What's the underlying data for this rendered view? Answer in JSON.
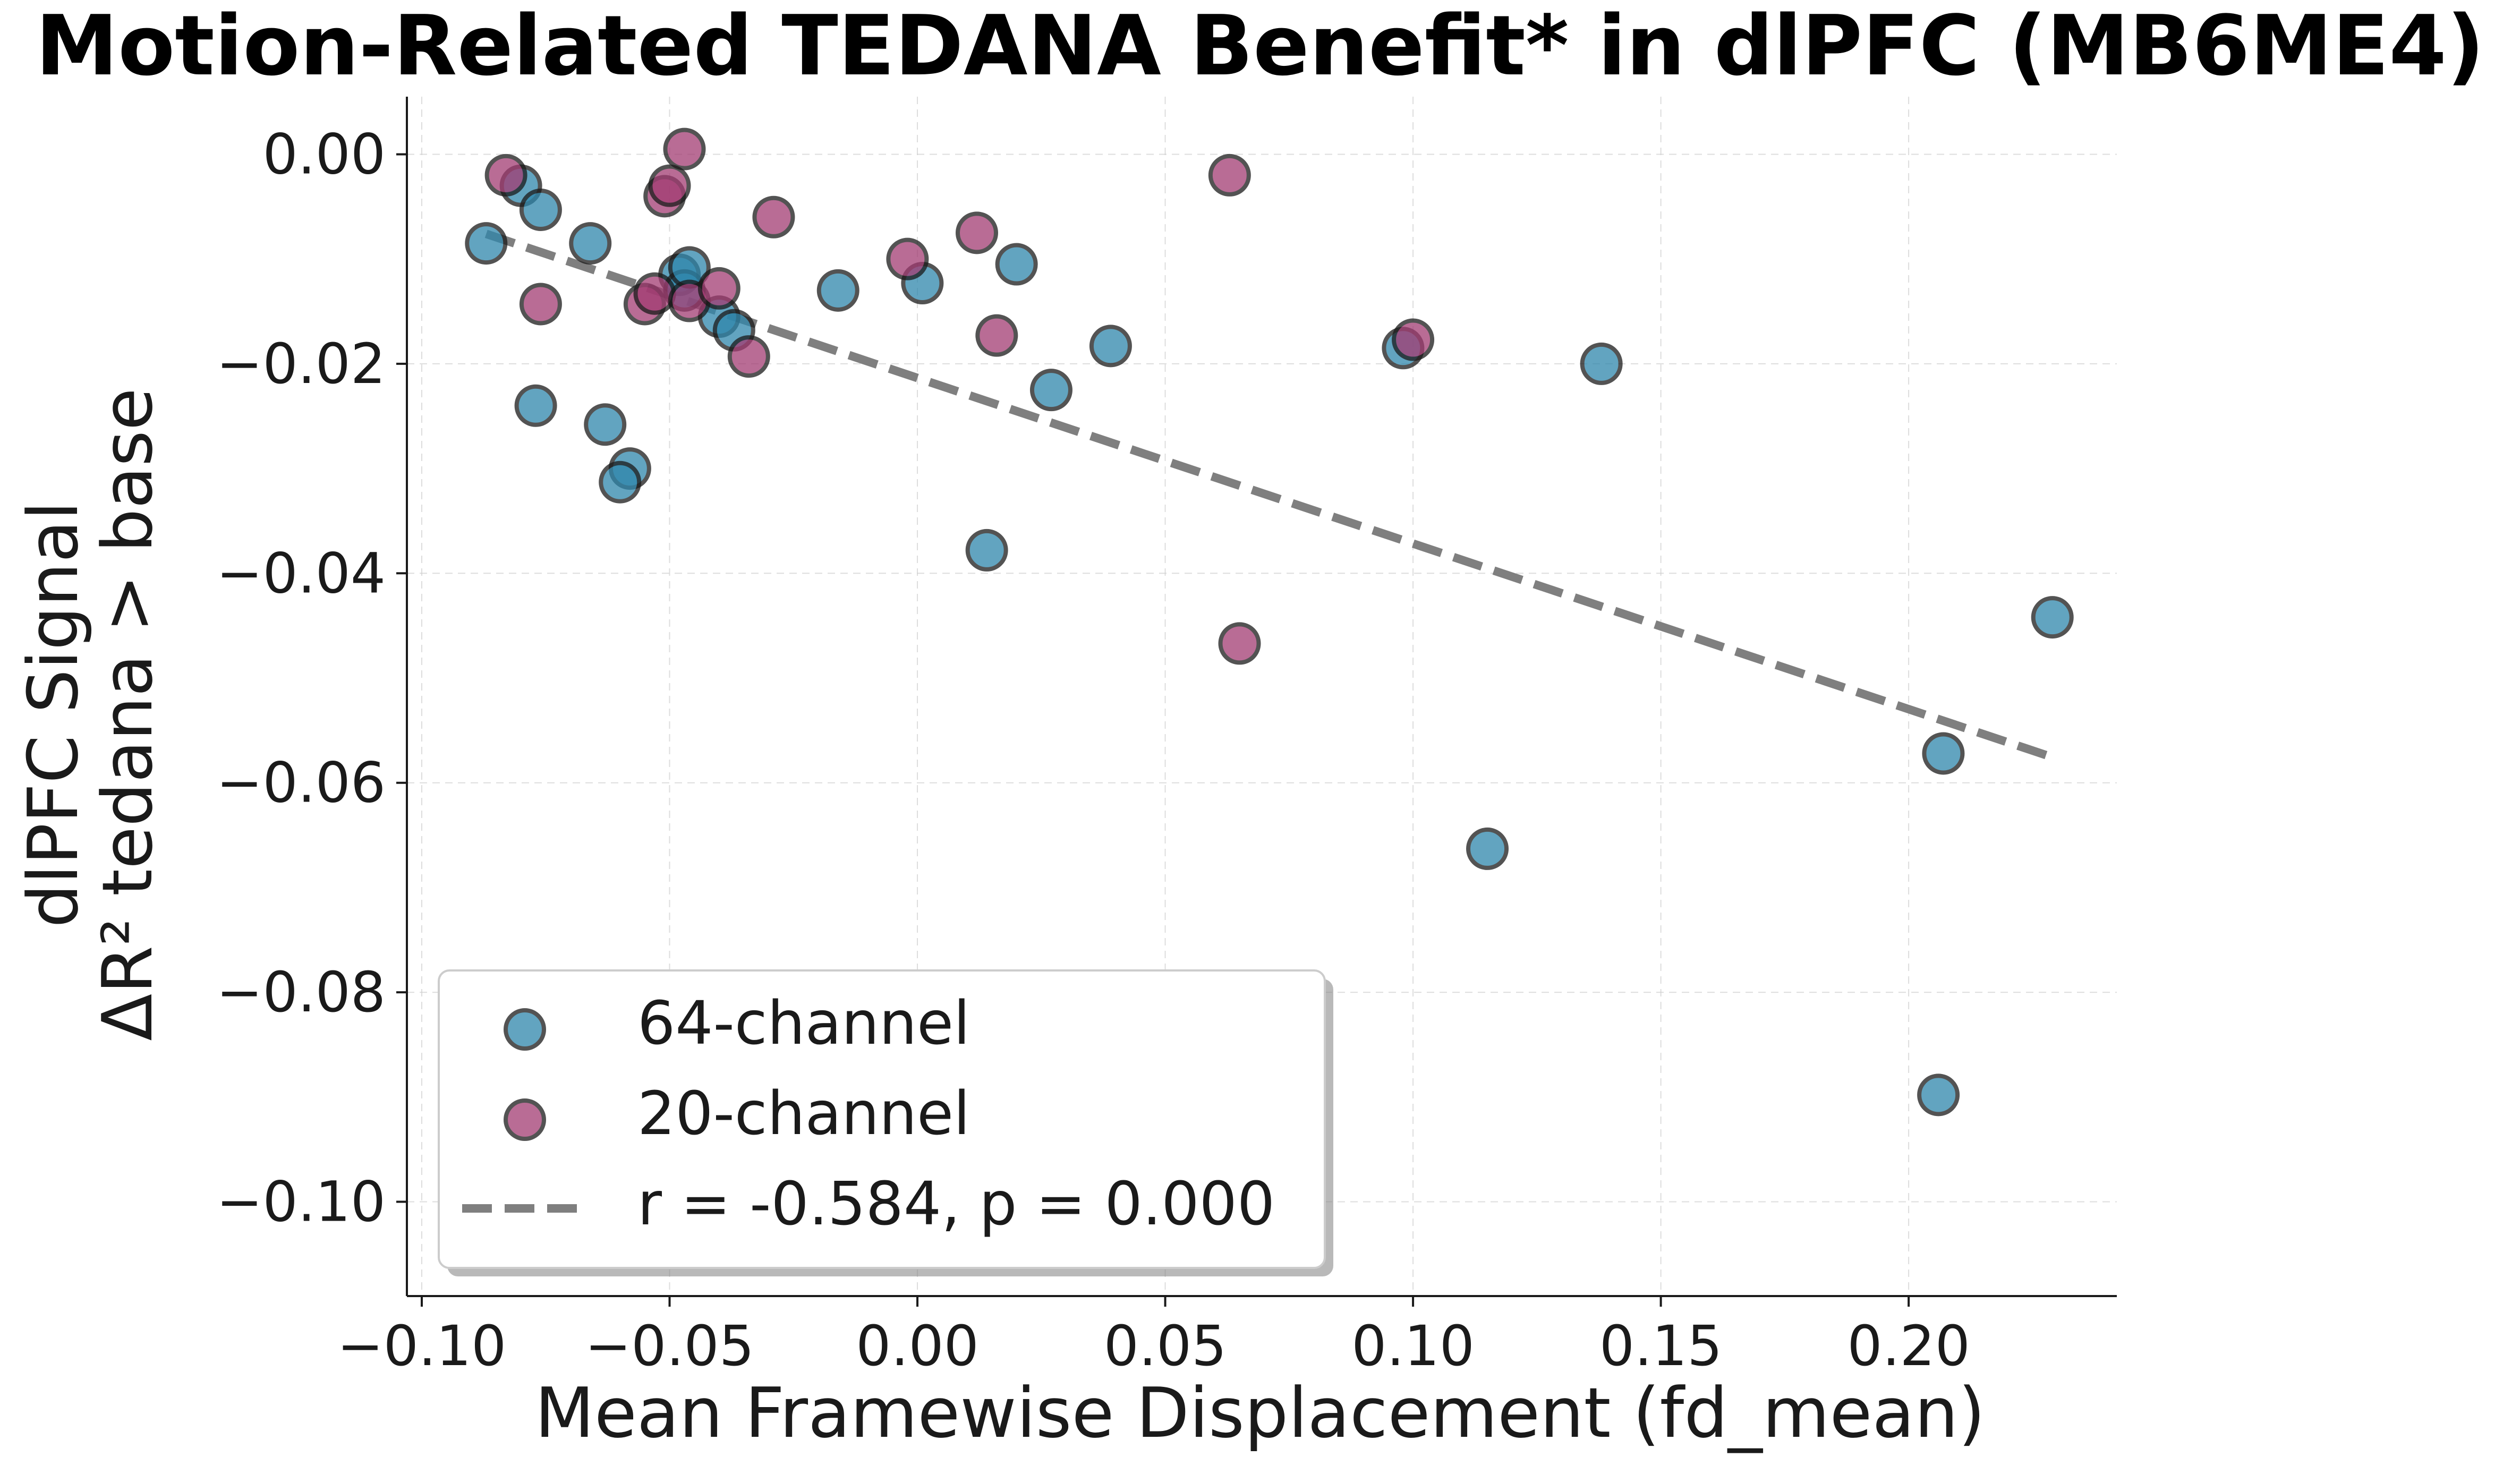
{
  "chart_data": {
    "type": "scatter",
    "title": "Motion-Related TEDANA Benefit* in dlPFC (MB6ME4)",
    "xlabel": "Mean Framewise Displacement (fd_mean)",
    "ylabel_line1": "dlPFC Signal",
    "ylabel_line2": "ΔR² tedana > base",
    "xlim": [
      -0.103,
      0.242
    ],
    "ylim": [
      -0.109,
      0.0055
    ],
    "x_ticks": [
      -0.1,
      -0.05,
      0.0,
      0.05,
      0.1,
      0.15,
      0.2
    ],
    "x_tick_labels": [
      "−0.10",
      "−0.05",
      "0.00",
      "0.05",
      "0.10",
      "0.15",
      "0.20"
    ],
    "y_ticks": [
      0.0,
      -0.02,
      -0.04,
      -0.06,
      -0.08,
      -0.1
    ],
    "y_tick_labels": [
      "0.00",
      "−0.02",
      "−0.04",
      "−0.06",
      "−0.08",
      "−0.10"
    ],
    "grid": true,
    "legend_position": "lower-left",
    "series": [
      {
        "name": "64-channel",
        "color": "#2E86AB",
        "points": [
          [
            -0.087,
            -0.0085
          ],
          [
            -0.08,
            -0.003
          ],
          [
            -0.076,
            -0.0053
          ],
          [
            -0.066,
            -0.0085
          ],
          [
            -0.077,
            -0.024
          ],
          [
            -0.063,
            -0.0258
          ],
          [
            -0.058,
            -0.03
          ],
          [
            -0.06,
            -0.0313
          ],
          [
            -0.048,
            -0.0115
          ],
          [
            -0.047,
            -0.013
          ],
          [
            -0.046,
            -0.0108
          ],
          [
            -0.04,
            -0.0155
          ],
          [
            -0.037,
            -0.0168
          ],
          [
            -0.016,
            -0.013
          ],
          [
            0.001,
            -0.0123
          ],
          [
            0.02,
            -0.0105
          ],
          [
            0.027,
            -0.0225
          ],
          [
            0.039,
            -0.0183
          ],
          [
            0.014,
            -0.0378
          ],
          [
            0.098,
            -0.0185
          ],
          [
            0.138,
            -0.02
          ],
          [
            0.115,
            -0.0663
          ],
          [
            0.207,
            -0.0572
          ],
          [
            0.206,
            -0.0898
          ],
          [
            0.229,
            -0.0442
          ]
        ]
      },
      {
        "name": "20-channel",
        "color": "#A23B72",
        "points": [
          [
            -0.083,
            -0.002
          ],
          [
            -0.076,
            -0.0143
          ],
          [
            -0.051,
            -0.004
          ],
          [
            -0.05,
            -0.003
          ],
          [
            -0.047,
            0.0005
          ],
          [
            -0.055,
            -0.0143
          ],
          [
            -0.053,
            -0.0133
          ],
          [
            -0.046,
            -0.014
          ],
          [
            -0.04,
            -0.0128
          ],
          [
            -0.034,
            -0.0193
          ],
          [
            -0.029,
            -0.006
          ],
          [
            -0.002,
            -0.01
          ],
          [
            0.012,
            -0.0075
          ],
          [
            0.016,
            -0.0173
          ],
          [
            0.063,
            -0.002
          ],
          [
            0.065,
            -0.0467
          ],
          [
            0.1,
            -0.0177
          ]
        ]
      }
    ],
    "fit_line": {
      "label": "r = -0.584, p = 0.000",
      "color": "#7f7f7f",
      "x": [
        -0.087,
        0.228
      ],
      "y": [
        -0.0076,
        -0.0574
      ]
    }
  }
}
